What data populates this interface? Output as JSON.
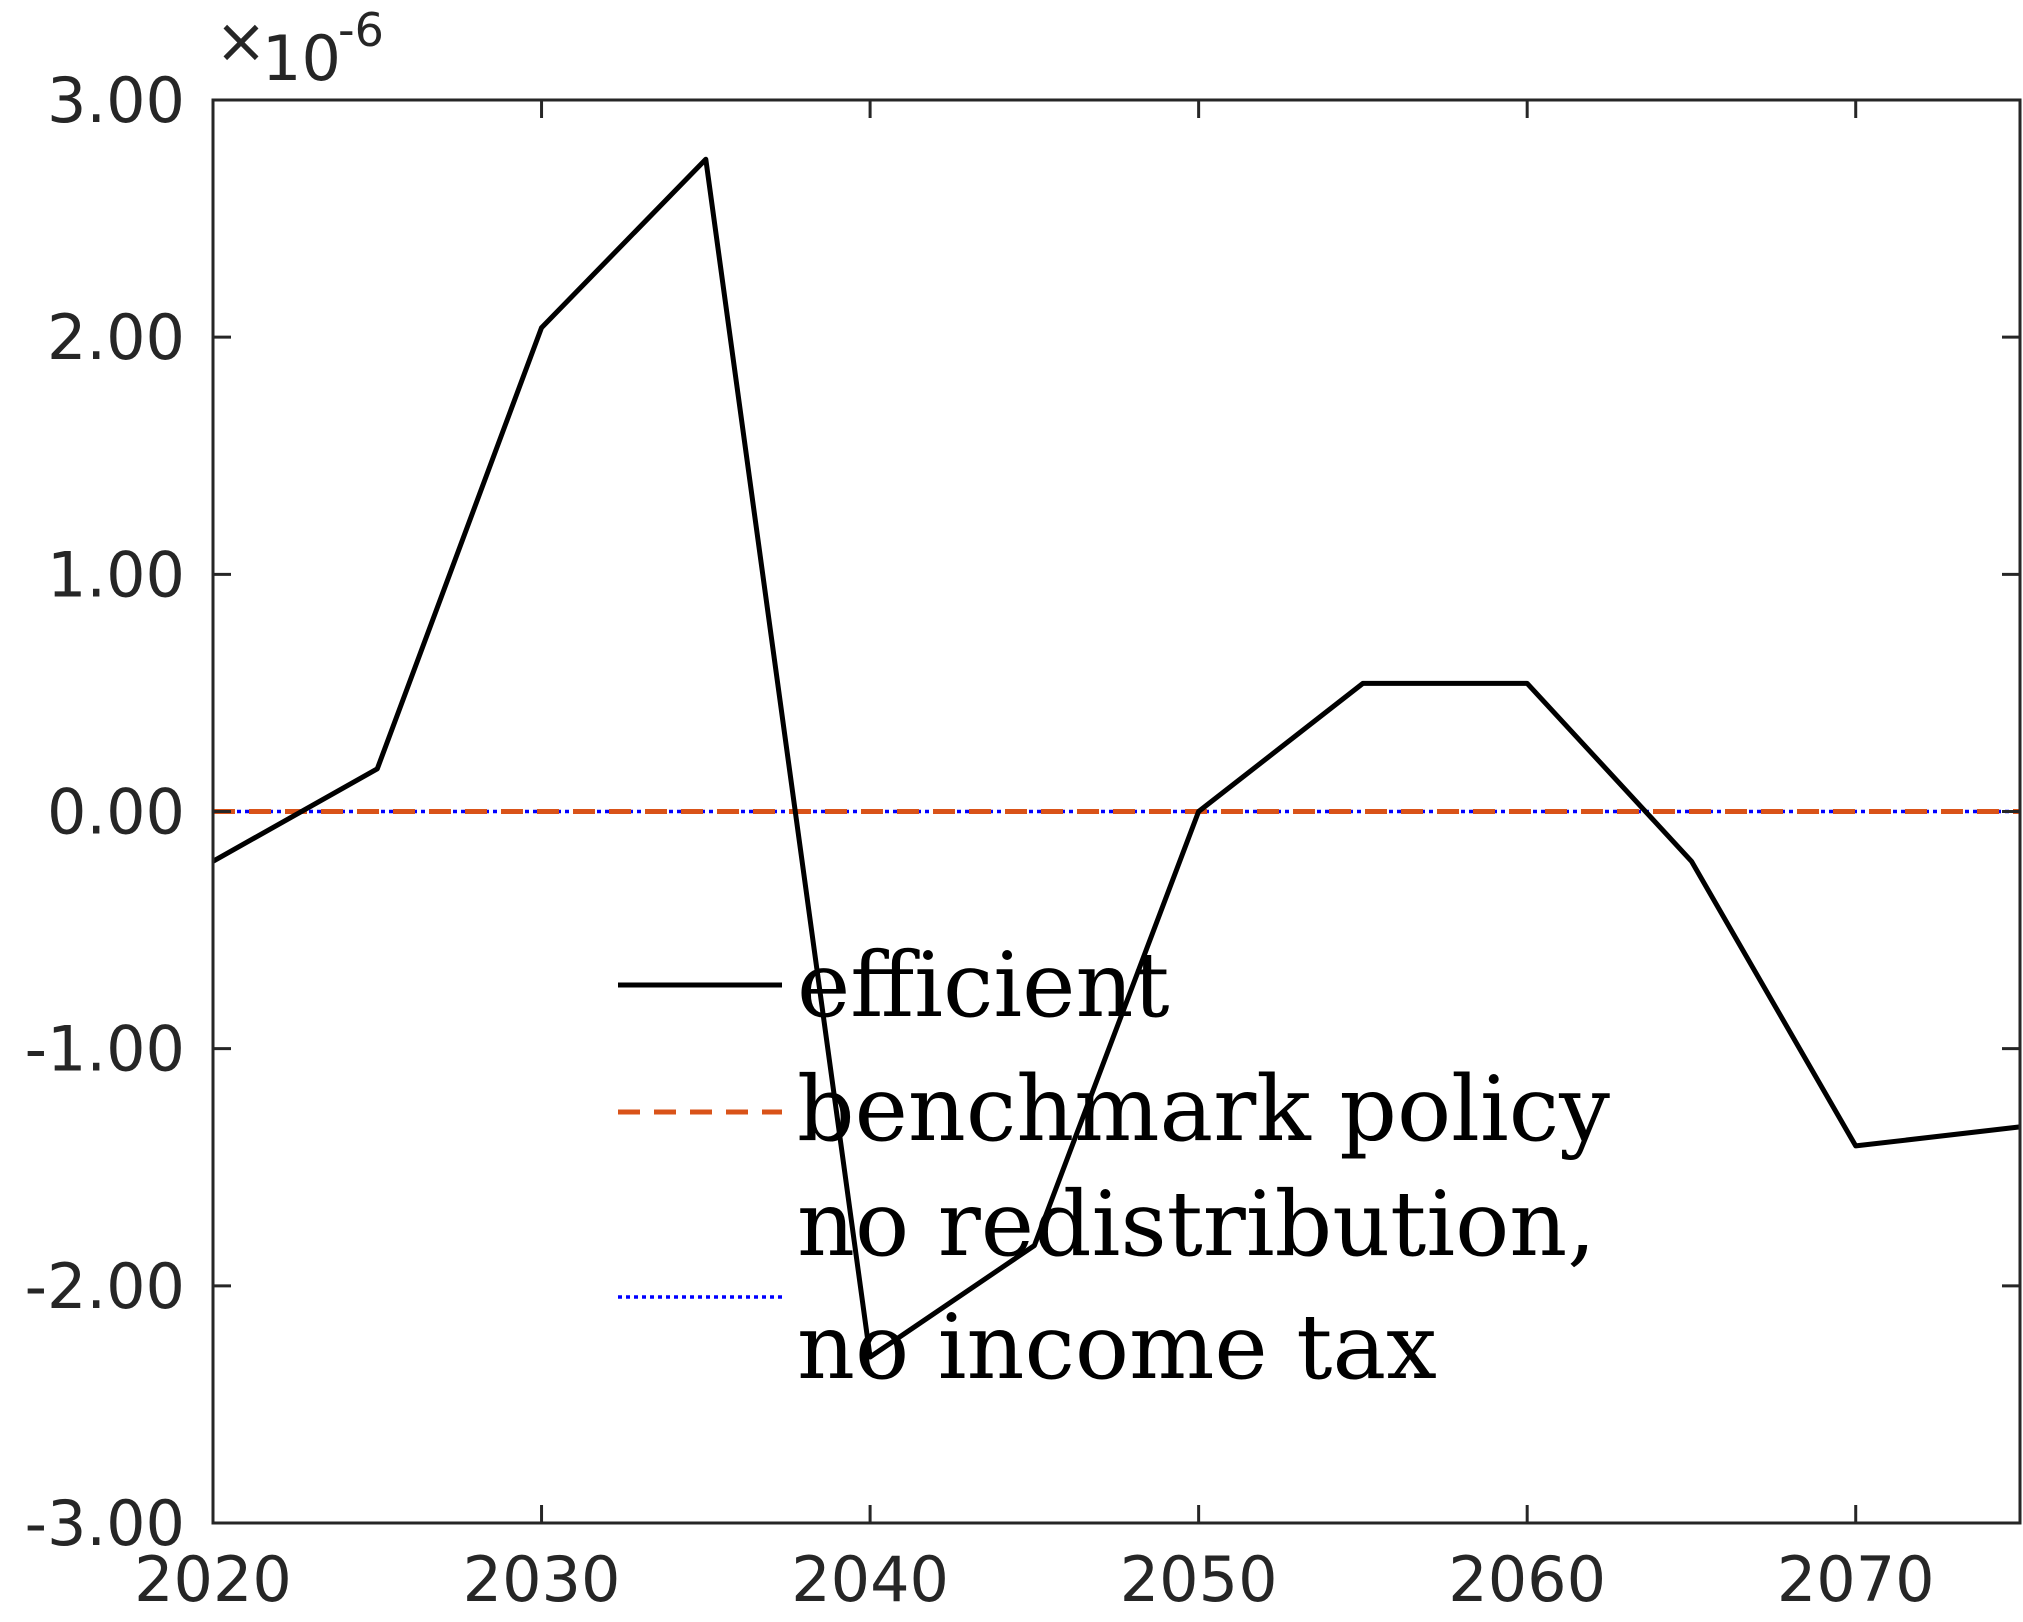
{
  "chart_data": {
    "type": "line",
    "title": "",
    "xlabel": "",
    "ylabel": "",
    "y_exponent_base": "10",
    "y_exponent_power": "-6",
    "xlim": [
      2020,
      2075
    ],
    "ylim": [
      -3.0,
      3.0
    ],
    "x_ticks": [
      2020,
      2030,
      2040,
      2050,
      2060,
      2070
    ],
    "x_tick_labels": [
      "2020",
      "2030",
      "2040",
      "2050",
      "2060",
      "2070"
    ],
    "y_ticks": [
      -3,
      -2,
      -1,
      0,
      1,
      2,
      3
    ],
    "y_tick_labels": [
      "-3.00",
      "-2.00",
      "-1.00",
      "0.00",
      "1.00",
      "2.00",
      "3.00"
    ],
    "grid": false,
    "legend_position": "center",
    "x": [
      2020,
      2025,
      2030,
      2035,
      2040,
      2045,
      2050,
      2055,
      2060,
      2065,
      2070,
      2075
    ],
    "series": [
      {
        "name": "efficient",
        "color": "#000000",
        "style": "solid",
        "values": [
          -0.21,
          0.18,
          2.04,
          2.75,
          -2.3,
          -1.83,
          0.0,
          0.54,
          0.54,
          -0.21,
          -1.41,
          -1.33
        ]
      },
      {
        "name": "benchmark policy",
        "color": "#D95319",
        "style": "dashed",
        "values": [
          0,
          0,
          0,
          0,
          0,
          0,
          0,
          0,
          0,
          0,
          0,
          0
        ]
      },
      {
        "name_lines": [
          "no redistribution,",
          "no income tax"
        ],
        "color": "#0000FF",
        "style": "dotted",
        "values": [
          0,
          0,
          0,
          0,
          0,
          0,
          0,
          0,
          0,
          0,
          0,
          0
        ]
      }
    ]
  }
}
